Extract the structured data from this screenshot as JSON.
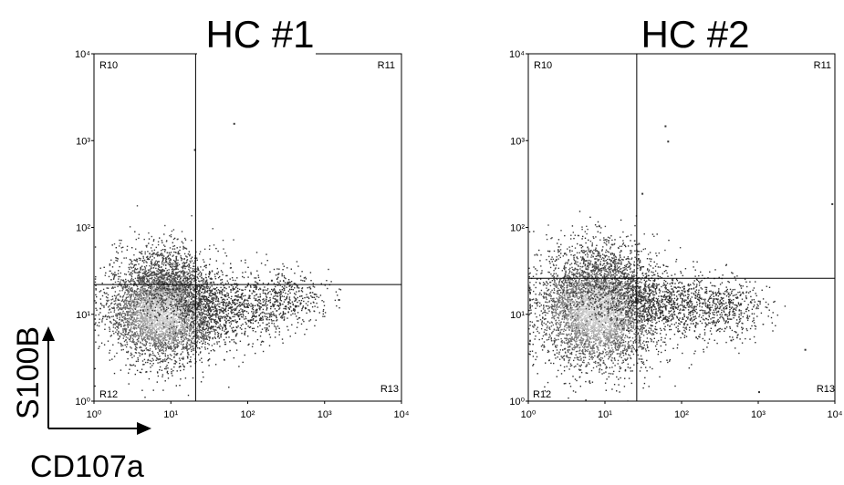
{
  "axis_labels": {
    "x": "CD107a",
    "y": "S100B"
  },
  "chart_data": [
    {
      "type": "scatter",
      "title": "HC #1",
      "xscale": "log",
      "yscale": "log",
      "xlim": [
        1,
        10000
      ],
      "ylim": [
        1,
        10000
      ],
      "xticks": [
        "10⁰",
        "10¹",
        "10²",
        "10³",
        "10⁴"
      ],
      "yticks": [
        "10⁰",
        "10¹",
        "10²",
        "10³",
        "10⁴"
      ],
      "gates": {
        "x": 21,
        "y": 22
      },
      "regions": [
        "R10",
        "R11",
        "R12",
        "R13"
      ],
      "population": {
        "main_cluster_center": [
          8,
          11
        ],
        "spread_log10": [
          0.35,
          0.28
        ],
        "tail": [
          [
            25,
            12
          ],
          [
            80,
            12
          ],
          [
            300,
            15
          ]
        ],
        "outliers": [
          [
            20,
            800
          ],
          [
            65,
            1600
          ],
          [
            200,
            25
          ],
          [
            320,
            23
          ],
          [
            1500,
            15
          ]
        ]
      }
    },
    {
      "type": "scatter",
      "title": "HC #2",
      "xscale": "log",
      "yscale": "log",
      "xlim": [
        1,
        10000
      ],
      "ylim": [
        1,
        10000
      ],
      "xticks": [
        "10⁰",
        "10¹",
        "10²",
        "10³",
        "10⁴"
      ],
      "yticks": [
        "10⁰",
        "10¹",
        "10²",
        "10³",
        "10⁴"
      ],
      "gates": {
        "x": 26,
        "y": 26
      },
      "regions": [
        "R10",
        "R11",
        "R12",
        "R13"
      ],
      "population": {
        "main_cluster_center": [
          8,
          11
        ],
        "spread_log10": [
          0.38,
          0.32
        ],
        "tail": [
          [
            30,
            14
          ],
          [
            100,
            13
          ],
          [
            400,
            12
          ]
        ],
        "outliers": [
          [
            65,
            1000
          ],
          [
            60,
            1500
          ],
          [
            30,
            250
          ],
          [
            1000,
            1.3
          ],
          [
            9000,
            190
          ],
          [
            4000,
            4
          ]
        ]
      }
    }
  ]
}
